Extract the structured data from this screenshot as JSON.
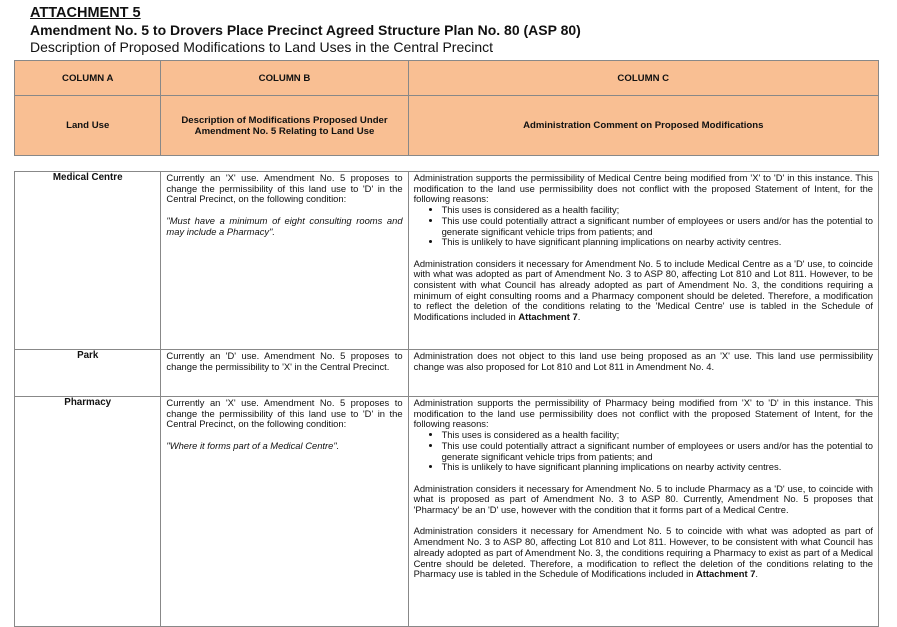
{
  "header": {
    "attachment": "ATTACHMENT 5",
    "title": "Amendment No. 5 to Drovers Place Precinct Agreed Structure Plan No. 80 (ASP 80)",
    "subtitle": "Description of Proposed Modifications to Land Uses in the Central Precinct"
  },
  "table_header": {
    "col_a": "COLUMN A",
    "col_b": "COLUMN B",
    "col_c": "COLUMN C",
    "col_a_desc": "Land Use",
    "col_b_desc": "Description of Modifications Proposed Under Amendment No. 5 Relating to Land Use",
    "col_c_desc": "Administration Comment on Proposed Modifications"
  },
  "rows": [
    {
      "land_use": "Medical Centre",
      "description": "Currently an 'X' use. Amendment No. 5 proposes to change the permissibility of this land use to 'D' in the Central Precinct, on the following condition:",
      "condition": "\"Must have a minimum of eight consulting rooms and may include a Pharmacy\".",
      "comment_intro": "Administration supports the permissibility of Medical Centre being modified from 'X' to 'D' in this instance. This modification to the land use permissibility does not conflict with the proposed Statement of Intent, for the following reasons:",
      "reasons": [
        "This uses is considered as a health facility;",
        "This use could potentially attract a significant number of employees or users and/or has the potential to generate significant vehicle trips from patients; and",
        "This is unlikely to have significant planning implications on nearby activity centres."
      ],
      "comment_p2": "Administration considers it necessary for Amendment No. 5 to include Medical Centre as a 'D' use, to coincide with what was adopted as part of Amendment No. 3 to ASP 80, affecting Lot 810 and Lot 811. However, to be consistent with what Council has already adopted as part of Amendment No. 3, the conditions requiring a minimum of eight consulting rooms and a Pharmacy component should be deleted. Therefore, a modification to reflect the deletion of the conditions relating to the 'Medical Centre' use is tabled in the Schedule of Modifications included in ",
      "attachment_ref": "Attachment 7"
    },
    {
      "land_use": "Park",
      "description": "Currently an 'D' use. Amendment No. 5 proposes to change the permissibility to 'X' in the Central Precinct.",
      "comment_intro": "Administration does not object to this land use being proposed as an 'X' use. This land use permissibility change was also proposed for Lot 810 and Lot 811 in Amendment No. 4."
    },
    {
      "land_use": "Pharmacy",
      "description": "Currently an 'X' use. Amendment No. 5 proposes to change the permissibility of this land use to 'D' in the Central Precinct, on the following condition:",
      "condition": "\"Where it forms part of a Medical Centre\".",
      "comment_intro": "Administration supports the permissibility of Pharmacy being modified from 'X' to 'D' in this instance. This modification to the land use permissibility does not conflict with the proposed Statement of Intent, for the following reasons:",
      "reasons": [
        "This uses is considered as a health facility;",
        "This use could potentially attract a significant number of employees or users and/or has the potential to generate significant vehicle trips from patients; and",
        "This is unlikely to have significant planning implications on nearby activity centres."
      ],
      "comment_p2": "Administration considers it necessary for Amendment No. 5 to include Pharmacy as a 'D' use, to coincide with what is proposed as part of Amendment No. 3 to ASP 80. Currently, Amendment No. 5 proposes that 'Pharmacy' be an 'D' use, however with the condition that it forms part of a Medical Centre.",
      "comment_p3": "Administration considers it necessary for Amendment No. 5 to coincide with what was adopted as part of Amendment No. 3 to ASP 80, affecting Lot 810 and Lot 811. However, to be consistent with what Council has already adopted as part of Amendment No. 3, the conditions requiring a Pharmacy to exist as part of a Medical Centre should be deleted. Therefore, a modification to reflect the deletion of the conditions relating to the Pharmacy use is tabled in the Schedule of Modifications included in ",
      "attachment_ref": "Attachment 7"
    }
  ],
  "colors": {
    "header_fill": "#f9bf93",
    "border": "#888888"
  }
}
